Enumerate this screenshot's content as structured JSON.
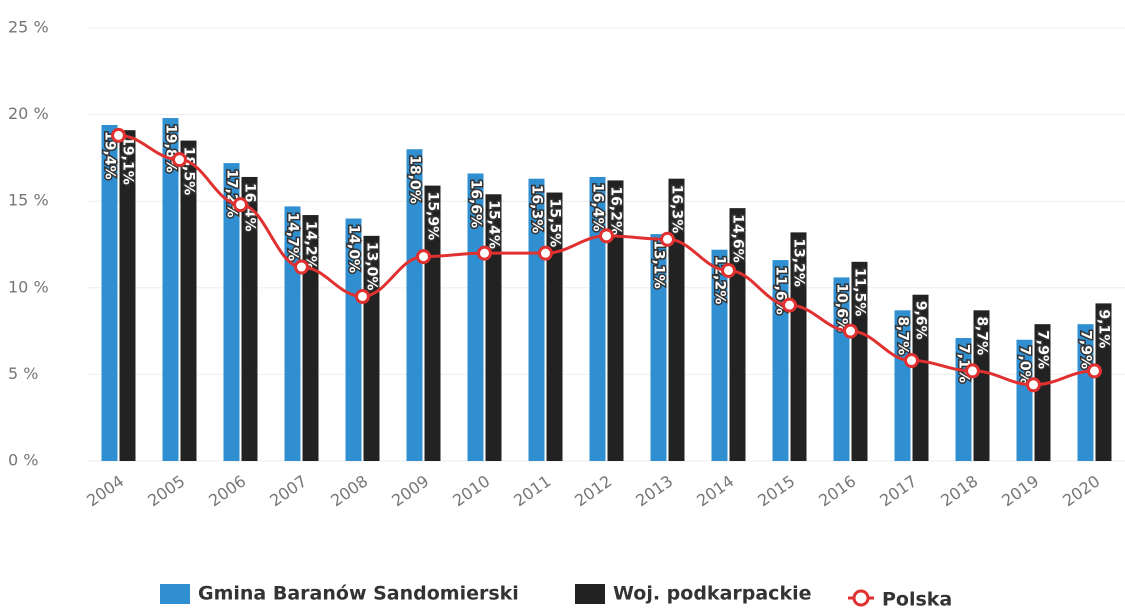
{
  "chart_data": {
    "type": "bar",
    "categories": [
      "2004",
      "2005",
      "2006",
      "2007",
      "2008",
      "2009",
      "2010",
      "2011",
      "2012",
      "2013",
      "2014",
      "2015",
      "2016",
      "2017",
      "2018",
      "2019",
      "2020"
    ],
    "series": [
      {
        "name": "Gmina Baranów Sandomierski",
        "color": "#2f8fd0",
        "values": [
          19.4,
          19.8,
          17.2,
          14.7,
          14.0,
          18.0,
          16.6,
          16.3,
          16.4,
          13.1,
          12.2,
          11.6,
          10.6,
          8.7,
          7.1,
          7.0,
          7.9
        ],
        "value_labels": [
          "19,4%",
          "19,8%",
          "17,2%",
          "14,7%",
          "14,0%",
          "18,0%",
          "16,6%",
          "16,3%",
          "16,4%",
          "13,1%",
          "12,2%",
          "11,6%",
          "10,6%",
          "8,7%",
          "7,1%",
          "7,0%",
          "7,9%"
        ]
      },
      {
        "name": "Woj. podkarpackie",
        "color": "#222222",
        "values": [
          19.1,
          18.5,
          16.4,
          14.2,
          13.0,
          15.9,
          15.4,
          15.5,
          16.2,
          16.3,
          14.6,
          13.2,
          11.5,
          9.6,
          8.7,
          7.9,
          9.1
        ],
        "value_labels": [
          "19,1%",
          "18,5%",
          "16,4%",
          "14,2%",
          "13,0%",
          "15,9%",
          "15,4%",
          "15,5%",
          "16,2%",
          "16,3%",
          "14,6%",
          "13,2%",
          "11,5%",
          "9,6%",
          "8,7%",
          "7,9%",
          "9,1%"
        ]
      },
      {
        "name": "Polska",
        "color": "#e03030",
        "type": "line",
        "values": [
          18.8,
          17.4,
          14.8,
          11.2,
          9.5,
          11.8,
          12.0,
          12.0,
          13.0,
          12.8,
          11.0,
          9.0,
          7.5,
          5.8,
          5.2,
          4.4,
          5.2
        ]
      }
    ],
    "ylim": [
      0,
      25
    ],
    "yticks": [
      {
        "value": 0,
        "label": "0 %"
      },
      {
        "value": 5,
        "label": "5 %"
      },
      {
        "value": 10,
        "label": "10 %"
      },
      {
        "value": 15,
        "label": "15 %"
      },
      {
        "value": 20,
        "label": "20 %"
      },
      {
        "value": 25,
        "label": "25 %"
      }
    ],
    "grid": true
  }
}
